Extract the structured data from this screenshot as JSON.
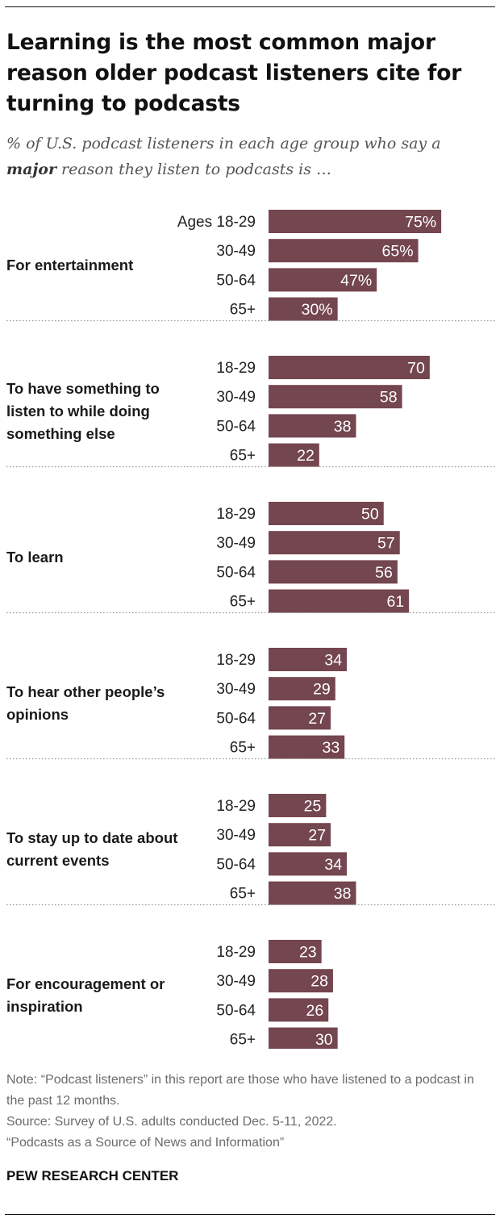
{
  "title": "Learning is the most common major reason older podcast listeners cite for turning to podcasts",
  "subtitle": {
    "prefix": "% of U.S. podcast listeners in each age group who say a",
    "emphasis": "major",
    "suffix": "reason they listen to podcasts is …"
  },
  "colors": {
    "bar": "#74464f",
    "bar_label": "#ffffff",
    "divider": "#9a9a9a",
    "text": "#222222"
  },
  "chart_data": {
    "type": "bar",
    "orientation": "horizontal",
    "xlim": [
      0,
      100
    ],
    "grid": false,
    "groups": [
      {
        "name": "For entertainment",
        "bars": [
          {
            "age": "Ages 18-29",
            "value": 75,
            "label": "75%"
          },
          {
            "age": "30-49",
            "value": 65,
            "label": "65%"
          },
          {
            "age": "50-64",
            "value": 47,
            "label": "47%"
          },
          {
            "age": "65+",
            "value": 30,
            "label": "30%"
          }
        ]
      },
      {
        "name": "To have something to listen to while doing something else",
        "bars": [
          {
            "age": "18-29",
            "value": 70,
            "label": "70"
          },
          {
            "age": "30-49",
            "value": 58,
            "label": "58"
          },
          {
            "age": "50-64",
            "value": 38,
            "label": "38"
          },
          {
            "age": "65+",
            "value": 22,
            "label": "22"
          }
        ]
      },
      {
        "name": "To learn",
        "bars": [
          {
            "age": "18-29",
            "value": 50,
            "label": "50"
          },
          {
            "age": "30-49",
            "value": 57,
            "label": "57"
          },
          {
            "age": "50-64",
            "value": 56,
            "label": "56"
          },
          {
            "age": "65+",
            "value": 61,
            "label": "61"
          }
        ]
      },
      {
        "name": "To hear other people’s opinions",
        "bars": [
          {
            "age": "18-29",
            "value": 34,
            "label": "34"
          },
          {
            "age": "30-49",
            "value": 29,
            "label": "29"
          },
          {
            "age": "50-64",
            "value": 27,
            "label": "27"
          },
          {
            "age": "65+",
            "value": 33,
            "label": "33"
          }
        ]
      },
      {
        "name": "To stay up to date about current events",
        "bars": [
          {
            "age": "18-29",
            "value": 25,
            "label": "25"
          },
          {
            "age": "30-49",
            "value": 27,
            "label": "27"
          },
          {
            "age": "50-64",
            "value": 34,
            "label": "34"
          },
          {
            "age": "65+",
            "value": 38,
            "label": "38"
          }
        ]
      },
      {
        "name": "For encouragement or inspiration",
        "bars": [
          {
            "age": "18-29",
            "value": 23,
            "label": "23"
          },
          {
            "age": "30-49",
            "value": 28,
            "label": "28"
          },
          {
            "age": "50-64",
            "value": 26,
            "label": "26"
          },
          {
            "age": "65+",
            "value": 30,
            "label": "30"
          }
        ]
      }
    ]
  },
  "notes": {
    "note": "Note: “Podcast listeners” in this report are those who have listened to a podcast in the past 12 months.",
    "source": "Source: Survey of U.S. adults conducted Dec. 5-11, 2022.",
    "report": "“Podcasts as a Source of News and Information”"
  },
  "brand": "PEW RESEARCH CENTER"
}
